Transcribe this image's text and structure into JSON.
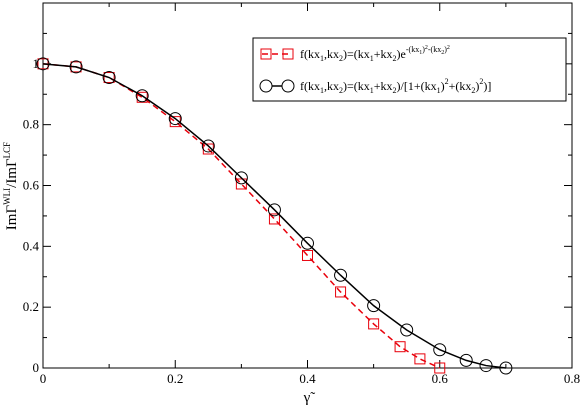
{
  "chart_data": {
    "type": "line",
    "title": "",
    "xlabel": "γ̃",
    "ylabel": "ImΓ^WLI/ImΓ^LCF",
    "xlim": [
      0,
      0.8
    ],
    "ylim": [
      0,
      1.2
    ],
    "xticks": [
      0,
      0.2,
      0.4,
      0.6,
      0.8
    ],
    "xtick_labels": [
      "0",
      "0.2",
      "0.4",
      "0.6",
      "0.8"
    ],
    "yticks": [
      0,
      0.2,
      0.4,
      0.6,
      0.8,
      1.0
    ],
    "ytick_labels": [
      "0",
      "0.2",
      "0.4",
      "0.6",
      "0.8",
      "1"
    ],
    "grid": false,
    "legend_position": "top-right",
    "series": [
      {
        "name": "f(kx1,kx2)=(kx1+kx2)e^-(kx1)^2-(kx2)^2",
        "legend_parts": {
          "a": "f(kx",
          "b": "1",
          "c": ",kx",
          "d": "2",
          "e": ")=(kx",
          "f": "1",
          "g": "+kx",
          "h": "2",
          "i": ")e",
          "sup1": "-(kx",
          "sup1s": "1",
          "sup2": ")",
          "sup3": "2",
          "sup4": "-(kx",
          "sup4s": "2",
          "sup5": ")",
          "sup6": "2"
        },
        "color": "#e8000b",
        "marker": "square",
        "line_style": "dashed",
        "x": [
          0.0,
          0.05,
          0.1,
          0.15,
          0.2,
          0.25,
          0.3,
          0.35,
          0.4,
          0.45,
          0.5,
          0.54,
          0.57,
          0.6
        ],
        "y": [
          1.0,
          0.99,
          0.955,
          0.89,
          0.81,
          0.72,
          0.605,
          0.49,
          0.37,
          0.25,
          0.145,
          0.07,
          0.03,
          0.0
        ]
      },
      {
        "name": "f(kx1,kx2)=(kx1+kx2)/[1+(kx1)^2+(kx2)^2)]",
        "legend_parts": {
          "a": "f(kx",
          "b": "1",
          "c": ",kx",
          "d": "2",
          "e": ")=(kx",
          "f": "1",
          "g": "+kx",
          "h": "2",
          "i": ")/[1+(kx",
          "j": "1",
          "k": ")",
          "l": "2",
          "m": "+(kx",
          "n": "2",
          "o": ")",
          "p": "2",
          "q": ")]"
        },
        "color": "#000000",
        "marker": "circle",
        "line_style": "solid",
        "x": [
          0.0,
          0.05,
          0.1,
          0.15,
          0.2,
          0.25,
          0.3,
          0.35,
          0.4,
          0.45,
          0.5,
          0.55,
          0.6,
          0.64,
          0.67,
          0.7
        ],
        "y": [
          1.0,
          0.99,
          0.955,
          0.895,
          0.82,
          0.73,
          0.625,
          0.52,
          0.41,
          0.305,
          0.205,
          0.125,
          0.06,
          0.025,
          0.008,
          0.0
        ]
      }
    ]
  }
}
